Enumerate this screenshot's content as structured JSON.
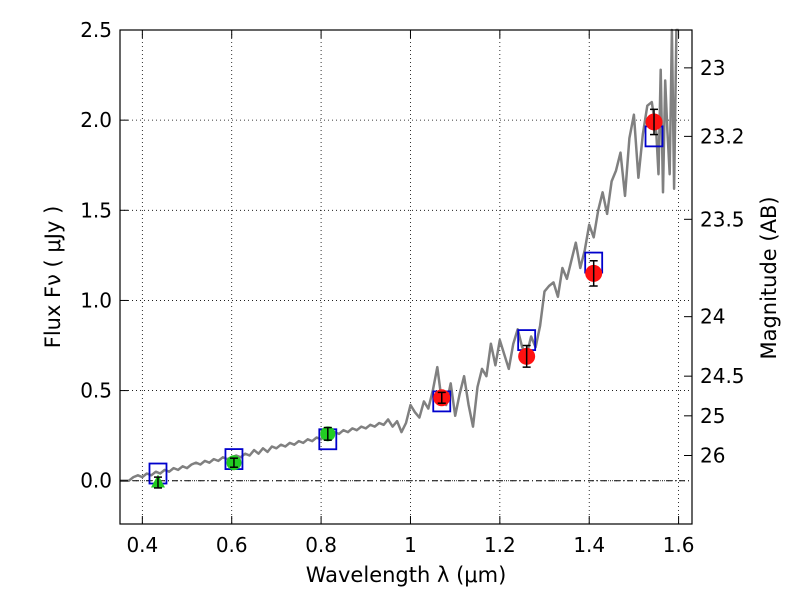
{
  "chart_data": {
    "type": "line",
    "xlabel": "Wavelength  λ (μm)",
    "ylabel": "Flux  Fν  ( μJy )",
    "y2label": "Magnitude (AB)",
    "xlim": [
      0.35,
      1.63
    ],
    "ylim": [
      -0.24,
      2.5
    ],
    "x_ticks": [
      0.4,
      0.6,
      0.8,
      1.0,
      1.2,
      1.4,
      1.6
    ],
    "x_tick_labels": [
      "0.4",
      "0.6",
      "0.8",
      "1",
      "1.2",
      "1.4",
      "1.6"
    ],
    "y_ticks": [
      0.0,
      0.5,
      1.0,
      1.5,
      2.0,
      2.5
    ],
    "y_tick_labels": [
      "0.0",
      "0.5",
      "1.0",
      "1.5",
      "2.0",
      "2.5"
    ],
    "y2_ticks": [
      {
        "label": "23",
        "flux": 2.29
      },
      {
        "label": "23.2",
        "flux": 1.91
      },
      {
        "label": "23.5",
        "flux": 1.45
      },
      {
        "label": "24",
        "flux": 0.91
      },
      {
        "label": "24.5",
        "flux": 0.58
      },
      {
        "label": "25",
        "flux": 0.36
      },
      {
        "label": "26",
        "flux": 0.14
      }
    ],
    "grid": true,
    "zero_line": true,
    "colors": {
      "model": "#808080",
      "synthetic_box": "#0000cc",
      "green_points": "#22cc22",
      "red_points": "#ff1111",
      "errorbar": "#000000"
    },
    "series": [
      {
        "name": "model spectrum",
        "kind": "line",
        "x": [
          0.35,
          0.37,
          0.38,
          0.39,
          0.4,
          0.41,
          0.42,
          0.43,
          0.44,
          0.45,
          0.46,
          0.47,
          0.48,
          0.49,
          0.5,
          0.51,
          0.52,
          0.53,
          0.54,
          0.55,
          0.56,
          0.57,
          0.58,
          0.59,
          0.6,
          0.61,
          0.62,
          0.63,
          0.64,
          0.65,
          0.66,
          0.67,
          0.68,
          0.69,
          0.7,
          0.71,
          0.72,
          0.73,
          0.74,
          0.75,
          0.76,
          0.77,
          0.78,
          0.79,
          0.8,
          0.81,
          0.82,
          0.83,
          0.84,
          0.85,
          0.86,
          0.87,
          0.88,
          0.89,
          0.9,
          0.91,
          0.92,
          0.93,
          0.94,
          0.95,
          0.96,
          0.97,
          0.98,
          0.99,
          1.0,
          1.01,
          1.02,
          1.03,
          1.04,
          1.05,
          1.06,
          1.07,
          1.08,
          1.09,
          1.1,
          1.11,
          1.12,
          1.13,
          1.14,
          1.15,
          1.16,
          1.17,
          1.18,
          1.19,
          1.2,
          1.21,
          1.22,
          1.23,
          1.24,
          1.25,
          1.26,
          1.27,
          1.28,
          1.29,
          1.3,
          1.31,
          1.32,
          1.33,
          1.34,
          1.35,
          1.36,
          1.37,
          1.38,
          1.39,
          1.4,
          1.41,
          1.42,
          1.43,
          1.44,
          1.45,
          1.46,
          1.47,
          1.48,
          1.49,
          1.5,
          1.51,
          1.52,
          1.53,
          1.54,
          1.55,
          1.555,
          1.56,
          1.565,
          1.57,
          1.575,
          1.58,
          1.585,
          1.59,
          1.595,
          1.6
        ],
        "y": [
          0.0,
          0.0,
          0.02,
          0.03,
          0.02,
          0.04,
          0.03,
          0.05,
          0.04,
          0.06,
          0.05,
          0.07,
          0.06,
          0.08,
          0.07,
          0.09,
          0.1,
          0.09,
          0.11,
          0.1,
          0.12,
          0.11,
          0.13,
          0.12,
          0.13,
          0.14,
          0.13,
          0.15,
          0.14,
          0.17,
          0.15,
          0.18,
          0.16,
          0.19,
          0.18,
          0.2,
          0.19,
          0.21,
          0.2,
          0.22,
          0.21,
          0.23,
          0.22,
          0.24,
          0.23,
          0.26,
          0.24,
          0.27,
          0.26,
          0.28,
          0.27,
          0.29,
          0.28,
          0.3,
          0.29,
          0.31,
          0.3,
          0.32,
          0.31,
          0.34,
          0.3,
          0.33,
          0.27,
          0.32,
          0.42,
          0.38,
          0.35,
          0.44,
          0.4,
          0.5,
          0.63,
          0.44,
          0.42,
          0.54,
          0.36,
          0.48,
          0.58,
          0.42,
          0.3,
          0.52,
          0.62,
          0.58,
          0.76,
          0.64,
          0.78,
          0.7,
          0.62,
          0.76,
          0.84,
          0.74,
          0.7,
          0.8,
          0.74,
          0.86,
          1.05,
          1.08,
          1.1,
          1.02,
          1.18,
          1.12,
          1.22,
          1.32,
          1.18,
          1.28,
          1.42,
          1.35,
          1.5,
          1.6,
          1.48,
          1.66,
          1.72,
          1.82,
          1.58,
          1.9,
          2.03,
          1.68,
          1.92,
          2.08,
          2.1,
          1.93,
          1.7,
          2.28,
          1.6,
          2.22,
          1.94,
          1.7,
          2.5,
          1.62,
          2.55,
          2.6
        ]
      },
      {
        "name": "synthetic photometry",
        "kind": "open-square",
        "x": [
          0.435,
          0.605,
          0.815,
          1.07,
          1.26,
          1.41,
          1.545
        ],
        "y": [
          0.04,
          0.12,
          0.23,
          0.44,
          0.78,
          1.21,
          1.91
        ]
      },
      {
        "name": "observed (green)",
        "kind": "filled",
        "markers": [
          "triangle",
          "circle",
          "circle"
        ],
        "x": [
          0.435,
          0.605,
          0.815
        ],
        "y": [
          -0.01,
          0.1,
          0.26
        ],
        "err": [
          0.03,
          0.025,
          0.035
        ]
      },
      {
        "name": "observed (red)",
        "kind": "filled-circle",
        "x": [
          1.07,
          1.26,
          1.41,
          1.545
        ],
        "y": [
          0.46,
          0.69,
          1.15,
          1.99
        ],
        "err": [
          0.03,
          0.06,
          0.07,
          0.07
        ]
      }
    ]
  }
}
